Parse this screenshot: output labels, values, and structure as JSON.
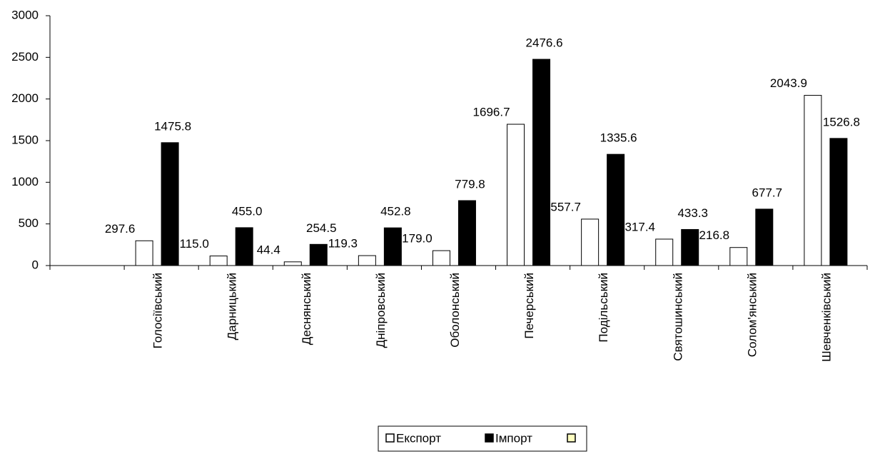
{
  "chart_data": {
    "type": "bar",
    "categories": [
      null,
      "Голосіївський",
      "Дарницький",
      "Деснянський",
      "Дніпровський",
      "Оболонський",
      "Печерський",
      "Подільський",
      "Святошинський",
      "Солом'янський",
      "Шевченківський"
    ],
    "series": [
      {
        "name": "Експорт",
        "color": "#ffffff",
        "values": [
          null,
          297.6,
          115.0,
          44.4,
          119.3,
          179.0,
          1696.7,
          557.7,
          317.4,
          216.8,
          2043.9
        ],
        "value_labels": [
          null,
          "297.6",
          "115.0",
          "44.4",
          "119.3",
          "179.0",
          "1696.7",
          "557.7",
          "317.4",
          "216.8",
          "2043.9"
        ]
      },
      {
        "name": "Імпорт",
        "color": "#000000",
        "values": [
          null,
          1475.8,
          455.0,
          254.5,
          452.8,
          779.8,
          2476.6,
          1335.6,
          433.3,
          677.7,
          1526.8
        ],
        "value_labels": [
          null,
          "1475.8",
          "455.0",
          "254.5",
          "452.8",
          "779.8",
          "2476.6",
          "1335.6",
          "433.3",
          "677.7",
          "1526.8"
        ]
      },
      {
        "name": null,
        "color": "#ffffc0",
        "values": [
          null,
          null,
          null,
          null,
          null,
          null,
          null,
          null,
          null,
          null,
          null
        ]
      }
    ],
    "ylim": [
      0,
      3000
    ],
    "yticks": [
      0,
      500,
      1000,
      1500,
      2000,
      2500,
      3000
    ]
  }
}
